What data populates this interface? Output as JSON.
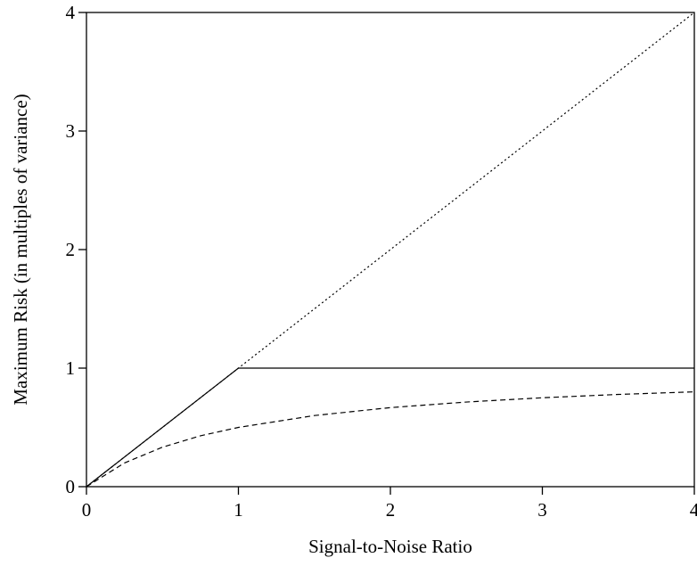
{
  "chart_data": {
    "type": "line",
    "title": "",
    "xlabel": "Signal-to-Noise Ratio",
    "ylabel": "Maximum Risk (in multiples of variance)",
    "xlim": [
      0,
      4
    ],
    "ylim": [
      0,
      4
    ],
    "xticks": [
      0,
      1,
      2,
      3,
      4
    ],
    "yticks": [
      0,
      1,
      2,
      3,
      4
    ],
    "grid": false,
    "legend": "none",
    "series": [
      {
        "style": "dotted",
        "color": "#000000",
        "x": [
          0,
          1,
          2,
          3,
          4
        ],
        "y": [
          0,
          1,
          2,
          3,
          4
        ]
      },
      {
        "style": "solid",
        "color": "#000000",
        "x": [
          0,
          1,
          2,
          3,
          4
        ],
        "y": [
          0,
          1,
          1,
          1,
          1
        ]
      },
      {
        "style": "dashed",
        "color": "#000000",
        "x": [
          0,
          0.25,
          0.5,
          0.75,
          1,
          1.5,
          2,
          2.5,
          3,
          3.5,
          4
        ],
        "y": [
          0,
          0.2,
          0.333,
          0.429,
          0.5,
          0.6,
          0.667,
          0.714,
          0.75,
          0.778,
          0.8
        ]
      }
    ]
  }
}
